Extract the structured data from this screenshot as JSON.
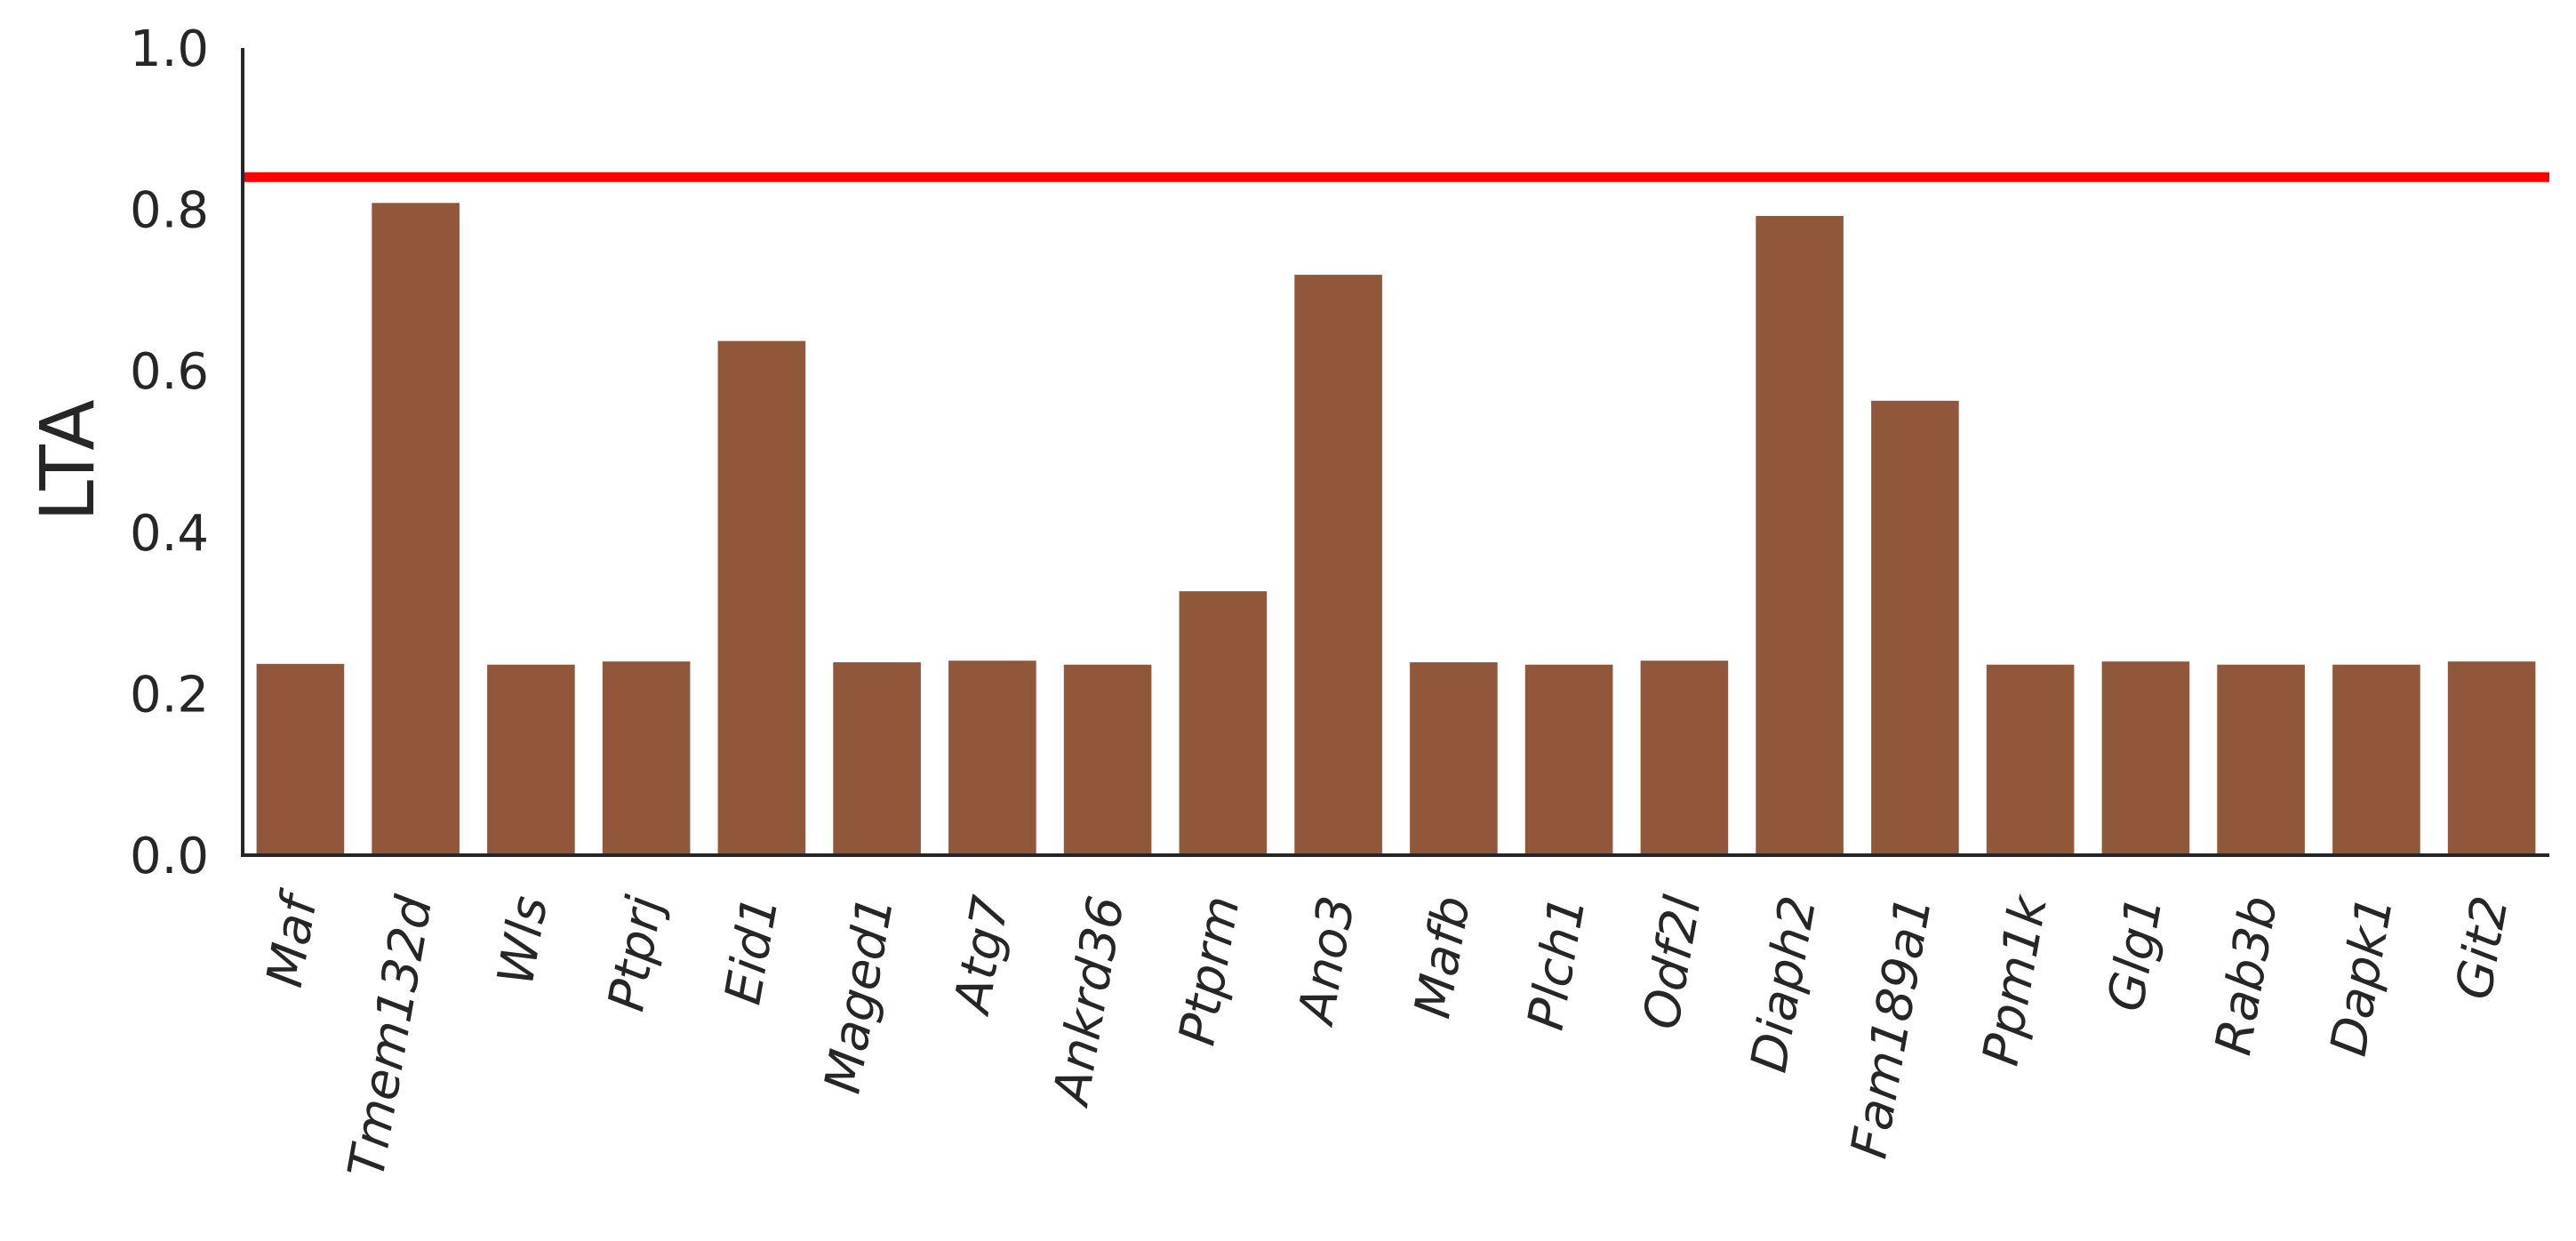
{
  "chart_data": {
    "type": "bar",
    "ylabel": "LTA",
    "xlabel": "",
    "title": "",
    "ylim": [
      0,
      1.0
    ],
    "yticks": [
      "0.0",
      "0.2",
      "0.4",
      "0.6",
      "0.8",
      "1.0"
    ],
    "grid": false,
    "legend": "none",
    "categories": [
      "Maf",
      "Tmem132d",
      "Wls",
      "Ptprj",
      "Eid1",
      "Maged1",
      "Atg7",
      "Ankrd36",
      "Ptprm",
      "Ano3",
      "Mafb",
      "Plch1",
      "Odf2l",
      "Diaph2",
      "Fam189a1",
      "Ppm1k",
      "Glg1",
      "Rab3b",
      "Dapk1",
      "Git2"
    ],
    "values": [
      0.237,
      0.808,
      0.236,
      0.24,
      0.637,
      0.239,
      0.241,
      0.236,
      0.327,
      0.719,
      0.239,
      0.236,
      0.241,
      0.792,
      0.563,
      0.236,
      0.24,
      0.236,
      0.236,
      0.24
    ],
    "reference_line": {
      "y": 0.84,
      "color": "#ff0000"
    },
    "bar_color": "#91573b",
    "axis_color": "#262626"
  }
}
